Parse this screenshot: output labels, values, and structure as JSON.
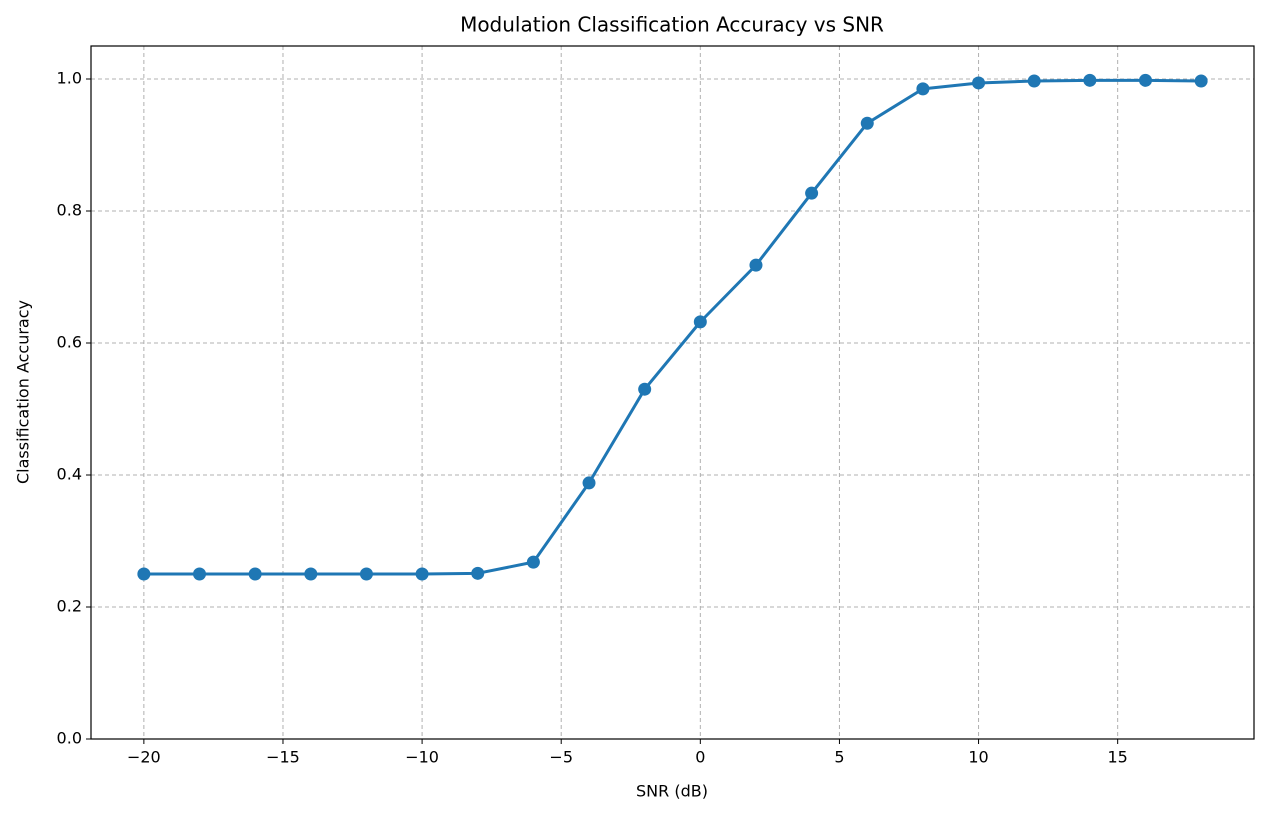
{
  "chart_data": {
    "type": "line",
    "title": "Modulation Classification Accuracy vs SNR",
    "x_label": "SNR (dB)",
    "y_label": "Classification Accuracy",
    "x": [
      -20,
      -18,
      -16,
      -14,
      -12,
      -10,
      -8,
      -6,
      -4,
      -2,
      0,
      2,
      4,
      6,
      8,
      10,
      12,
      14,
      16,
      18
    ],
    "series": [
      {
        "name": "Accuracy",
        "color": "#1f77b4",
        "values": [
          0.25,
          0.25,
          0.25,
          0.25,
          0.25,
          0.25,
          0.251,
          0.268,
          0.388,
          0.53,
          0.632,
          0.718,
          0.827,
          0.933,
          0.985,
          0.994,
          0.997,
          0.998,
          0.998,
          0.997
        ]
      }
    ],
    "xlim": [
      -21.9,
      19.9
    ],
    "xticks": [
      {
        "value": -20,
        "label": "−20"
      },
      {
        "value": -15,
        "label": "−15"
      },
      {
        "value": -10,
        "label": "−10"
      },
      {
        "value": -5,
        "label": "−5"
      },
      0,
      5,
      10,
      15
    ],
    "ylim": [
      0,
      1.05
    ],
    "yticks": [
      {
        "value": 0,
        "label": "0.0"
      },
      0.2,
      0.4,
      0.6,
      0.8,
      {
        "value": 1,
        "label": "1.0"
      }
    ],
    "grid": true
  }
}
